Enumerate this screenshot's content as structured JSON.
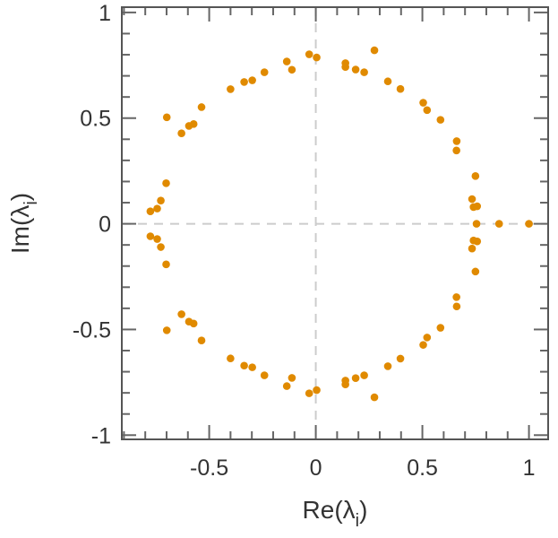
{
  "chart_data": {
    "type": "scatter",
    "title": "",
    "xlabel": {
      "text": "Re(λ",
      "sub": "i",
      "close": ")"
    },
    "ylabel": {
      "text": "Im(λ",
      "sub": "i",
      "close": ")"
    },
    "xlim": [
      -0.91,
      1.09
    ],
    "ylim": [
      -1.02,
      1.025
    ],
    "xticks": [
      -0.5,
      0,
      0.5,
      1
    ],
    "xtick_labels": [
      "-0.5",
      "0",
      "0.5",
      "1"
    ],
    "yticks": [
      -1,
      -0.5,
      0,
      0.5,
      1
    ],
    "ytick_labels": [
      "-1",
      "-0.5",
      "0",
      "0.5",
      "1"
    ],
    "minor_tick_step": 0.1,
    "grid": false,
    "reference_lines": [
      "x=0 dashed",
      "y=0 dashed"
    ],
    "marker_color": "#e08a00",
    "points": [
      [
        -0.776,
        0.059
      ],
      [
        -0.744,
        0.072
      ],
      [
        -0.727,
        0.11
      ],
      [
        -0.702,
        0.192
      ],
      [
        -0.699,
        0.504
      ],
      [
        -0.63,
        0.428
      ],
      [
        -0.595,
        0.463
      ],
      [
        -0.573,
        0.472
      ],
      [
        -0.536,
        0.552
      ],
      [
        -0.4,
        0.637
      ],
      [
        -0.336,
        0.671
      ],
      [
        -0.298,
        0.679
      ],
      [
        -0.241,
        0.717
      ],
      [
        -0.136,
        0.768
      ],
      [
        -0.112,
        0.729
      ],
      [
        -0.031,
        0.802
      ],
      [
        0.004,
        0.787
      ],
      [
        0.275,
        0.821
      ],
      [
        0.139,
        0.76
      ],
      [
        0.139,
        0.742
      ],
      [
        0.187,
        0.73
      ],
      [
        0.227,
        0.717
      ],
      [
        0.338,
        0.674
      ],
      [
        0.397,
        0.638
      ],
      [
        0.504,
        0.573
      ],
      [
        0.522,
        0.538
      ],
      [
        0.585,
        0.492
      ],
      [
        0.661,
        0.391
      ],
      [
        0.66,
        0.347
      ],
      [
        0.749,
        0.226
      ],
      [
        0.733,
        0.117
      ],
      [
        0.74,
        0.079
      ],
      [
        0.757,
        0.083
      ],
      [
        -0.776,
        -0.059
      ],
      [
        -0.744,
        -0.072
      ],
      [
        -0.727,
        -0.11
      ],
      [
        -0.702,
        -0.192
      ],
      [
        -0.699,
        -0.504
      ],
      [
        -0.63,
        -0.428
      ],
      [
        -0.595,
        -0.463
      ],
      [
        -0.573,
        -0.472
      ],
      [
        -0.536,
        -0.552
      ],
      [
        -0.4,
        -0.637
      ],
      [
        -0.336,
        -0.671
      ],
      [
        -0.298,
        -0.679
      ],
      [
        -0.241,
        -0.717
      ],
      [
        -0.136,
        -0.768
      ],
      [
        -0.112,
        -0.729
      ],
      [
        -0.031,
        -0.802
      ],
      [
        0.004,
        -0.787
      ],
      [
        0.275,
        -0.821
      ],
      [
        0.139,
        -0.76
      ],
      [
        0.139,
        -0.742
      ],
      [
        0.187,
        -0.73
      ],
      [
        0.227,
        -0.717
      ],
      [
        0.338,
        -0.674
      ],
      [
        0.397,
        -0.638
      ],
      [
        0.504,
        -0.573
      ],
      [
        0.522,
        -0.538
      ],
      [
        0.585,
        -0.492
      ],
      [
        0.661,
        -0.391
      ],
      [
        0.66,
        -0.347
      ],
      [
        0.749,
        -0.226
      ],
      [
        0.733,
        -0.117
      ],
      [
        0.74,
        -0.079
      ],
      [
        0.757,
        -0.083
      ],
      [
        0.754,
        0.0
      ],
      [
        0.86,
        0.0
      ],
      [
        1.0,
        0.0
      ]
    ]
  }
}
